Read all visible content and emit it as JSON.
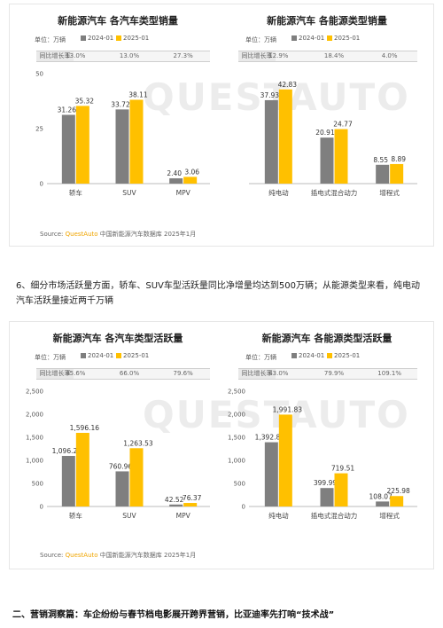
{
  "watermark": "QUESTAUTO",
  "colors": {
    "series_2024": "#7f7f7f",
    "series_2025": "#ffc000"
  },
  "source": {
    "prefix": "Source: ",
    "brand": "QuestAuto",
    "suffix": " 中国新能源汽车数据库 2025年1月"
  },
  "paragraph": "6、细分市场活跃量方面，轿车、SUV车型活跃量同比净增量均达到500万辆；从能源类型来看，纯电动汽车活跃量接近两千万辆",
  "section_heading": "二、营销洞察篇：车企纷纷与春节档电影展开跨界营销，比亚迪率先打响“技术战”",
  "chart_data": [
    {
      "type": "bar",
      "title": "新能源汽车 各汽车类型销量",
      "unit": "单位：万辆",
      "growth_label": "同比增长率",
      "categories": [
        "轿车",
        "SUV",
        "MPV"
      ],
      "growth": [
        "13.0%",
        "13.0%",
        "27.3%"
      ],
      "series": [
        {
          "name": "2024-01",
          "values": [
            31.26,
            33.72,
            2.4
          ],
          "labels": [
            "31.26",
            "33.72",
            "2.40"
          ]
        },
        {
          "name": "2025-01",
          "values": [
            35.32,
            38.11,
            3.06
          ],
          "labels": [
            "35.32",
            "38.11",
            "3.06"
          ]
        }
      ],
      "ylim": [
        0,
        50
      ],
      "yticks": [
        "0",
        "25",
        "50"
      ],
      "show_yaxis": true
    },
    {
      "type": "bar",
      "title": "新能源汽车 各能源类型销量",
      "unit": "单位：万辆",
      "growth_label": "同比增长率",
      "categories": [
        "纯电动",
        "插电式混合动力",
        "增程式"
      ],
      "growth": [
        "12.9%",
        "18.4%",
        "4.0%"
      ],
      "series": [
        {
          "name": "2024-01",
          "values": [
            37.93,
            20.91,
            8.55
          ],
          "labels": [
            "37.93",
            "20.91",
            "8.55"
          ]
        },
        {
          "name": "2025-01",
          "values": [
            42.83,
            24.77,
            8.89
          ],
          "labels": [
            "42.83",
            "24.77",
            "8.89"
          ]
        }
      ],
      "ylim": [
        0,
        50
      ],
      "yticks": [],
      "show_yaxis": false
    },
    {
      "type": "bar",
      "title": "新能源汽车 各汽车类型活跃量",
      "unit": "单位：万辆",
      "growth_label": "同比增长率",
      "categories": [
        "轿车",
        "SUV",
        "MPV"
      ],
      "growth": [
        "45.6%",
        "66.0%",
        "79.6%"
      ],
      "series": [
        {
          "name": "2024-01",
          "values": [
            1096.26,
            760.96,
            42.52
          ],
          "labels": [
            "1,096.26",
            "760.96",
            "42.52"
          ]
        },
        {
          "name": "2025-01",
          "values": [
            1596.16,
            1263.53,
            76.37
          ],
          "labels": [
            "1,596.16",
            "1,263.53",
            "76.37"
          ]
        }
      ],
      "ylim": [
        0,
        2500
      ],
      "yticks": [
        "0",
        "500",
        "1,000",
        "1,500",
        "2,000",
        "2,500"
      ],
      "show_yaxis": true
    },
    {
      "type": "bar",
      "title": "新能源汽车 各能源类型活跃量",
      "unit": "单位：万辆",
      "growth_label": "同比增长率",
      "categories": [
        "纯电动",
        "插电式混合动力",
        "增程式"
      ],
      "growth": [
        "43.0%",
        "79.9%",
        "109.1%"
      ],
      "series": [
        {
          "name": "2024-01",
          "values": [
            1392.81,
            399.99,
            108.07
          ],
          "labels": [
            "1,392.81",
            "399.99",
            "108.07"
          ]
        },
        {
          "name": "2025-01",
          "values": [
            1991.83,
            719.51,
            225.98
          ],
          "labels": [
            "1,991.83",
            "719.51",
            "225.98"
          ]
        }
      ],
      "ylim": [
        0,
        2500
      ],
      "yticks": [
        "0",
        "500",
        "1,000",
        "1,500",
        "2,000",
        "2,500"
      ],
      "show_yaxis": true
    }
  ]
}
